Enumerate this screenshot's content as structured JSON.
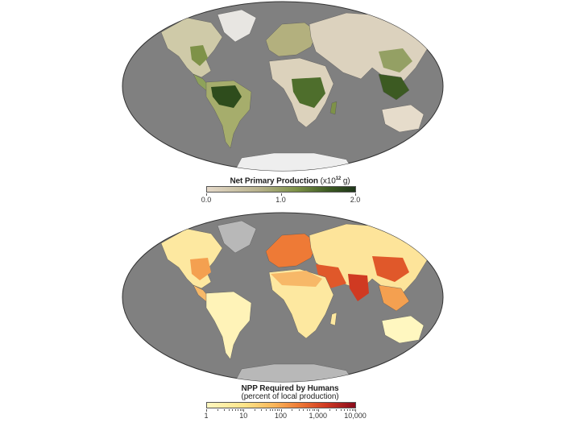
{
  "maps": {
    "top": {
      "legend_title": "Net Primary Production",
      "legend_unit_prefix": "(x10",
      "legend_unit_exp": "12",
      "legend_unit_suffix": " g)",
      "scale": {
        "ticks": [
          "0.0",
          "1.0",
          "2.0"
        ],
        "min_color": "#e4d8c8",
        "max_color": "#1f361a"
      }
    },
    "bottom": {
      "legend_title": "NPP Required by Humans",
      "legend_subtitle": "(percent of local production)",
      "scale": {
        "ticks": [
          "1",
          "10",
          "100",
          "1,000",
          "10,000"
        ],
        "log": true,
        "min_color": "#fff7c0",
        "max_color": "#8a0a1c"
      }
    }
  },
  "colors": {
    "ocean": "#808080",
    "land_low": "#e2d7c6",
    "vegetation_dense": "#2a4a1c",
    "ice": "#eeeeee",
    "human_low": "#fff3b8",
    "human_high": "#e0582a"
  }
}
